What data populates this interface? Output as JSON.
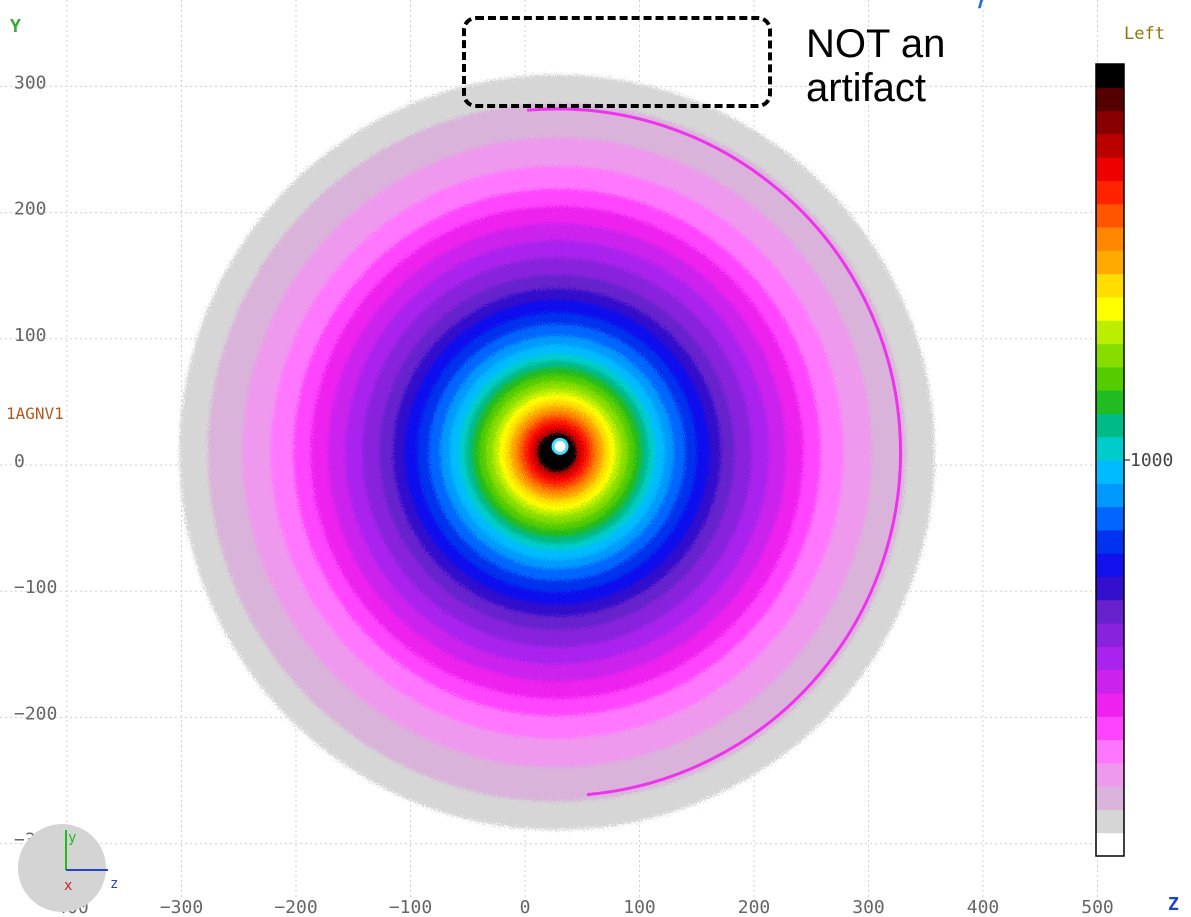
{
  "title_partial": "/",
  "annotation": {
    "line1": "NOT an",
    "line2": "artifact"
  },
  "colorbar": {
    "title": "Left",
    "tick_label": "1000",
    "colors": [
      "#ffffff",
      "#d6d6d6",
      "#d9b3d9",
      "#ee99ee",
      "#ff77ff",
      "#ff44ff",
      "#ee22ee",
      "#cc22ee",
      "#aa22ee",
      "#8822dd",
      "#6622cc",
      "#3311cc",
      "#1111ee",
      "#0033ee",
      "#0066ff",
      "#0099ff",
      "#00bbff",
      "#00cccc",
      "#00bb88",
      "#22bb22",
      "#55cc00",
      "#88dd00",
      "#bbee00",
      "#ffff00",
      "#ffdd00",
      "#ffaa00",
      "#ff8800",
      "#ff5500",
      "#ff2200",
      "#ee0000",
      "#bb0000",
      "#880000",
      "#550000",
      "#000000"
    ]
  },
  "axes": {
    "y_letter": "Y",
    "z_letter": "Z",
    "detector_label": "1AGNV1",
    "triad_y": "y",
    "triad_x": "x",
    "triad_z": "z"
  },
  "chart_data": {
    "type": "heatmap",
    "title": "",
    "xlabel": "Z",
    "ylabel": "Y",
    "xlim": [
      -400,
      500
    ],
    "ylim": [
      -350,
      350
    ],
    "x_ticks": [
      -400,
      -300,
      -200,
      -100,
      0,
      100,
      200,
      300,
      400,
      500
    ],
    "x_tick_labels": [
      "−400",
      "−300",
      "−200",
      "−100",
      "0",
      "100",
      "200",
      "300",
      "400",
      "500"
    ],
    "y_ticks": [
      300,
      200,
      100,
      0,
      -100,
      -200,
      -300
    ],
    "y_tick_labels": [
      "300",
      "200",
      "100",
      "0",
      "−100",
      "−200",
      "−300"
    ],
    "grid": true,
    "center": [
      28,
      10
    ],
    "ring_bands": [
      {
        "r": 330,
        "level": 1
      },
      {
        "r": 305,
        "level": 2
      },
      {
        "r": 275,
        "level": 3
      },
      {
        "r": 250,
        "level": 4
      },
      {
        "r": 230,
        "level": 5
      },
      {
        "r": 215,
        "level": 6
      },
      {
        "r": 200,
        "level": 7
      },
      {
        "r": 185,
        "level": 8
      },
      {
        "r": 170,
        "level": 9
      },
      {
        "r": 155,
        "level": 10
      },
      {
        "r": 143,
        "level": 11
      },
      {
        "r": 133,
        "level": 12
      },
      {
        "r": 122,
        "level": 13
      },
      {
        "r": 112,
        "level": 14
      },
      {
        "r": 102,
        "level": 15
      },
      {
        "r": 94,
        "level": 16
      },
      {
        "r": 86,
        "level": 17
      },
      {
        "r": 80,
        "level": 18
      },
      {
        "r": 74,
        "level": 19
      },
      {
        "r": 68,
        "level": 20
      },
      {
        "r": 62,
        "level": 21
      },
      {
        "r": 56,
        "level": 22
      },
      {
        "r": 51,
        "level": 23
      },
      {
        "r": 46,
        "level": 24
      },
      {
        "r": 41,
        "level": 25
      },
      {
        "r": 37,
        "level": 26
      },
      {
        "r": 33,
        "level": 27
      },
      {
        "r": 29,
        "level": 28
      },
      {
        "r": 25,
        "level": 29
      },
      {
        "r": 21,
        "level": 30
      },
      {
        "r": 17,
        "level": 33
      }
    ],
    "arc_feature": {
      "center": [
        28,
        10
      ],
      "r": 300,
      "start_deg": 95,
      "end_deg": -85
    }
  }
}
